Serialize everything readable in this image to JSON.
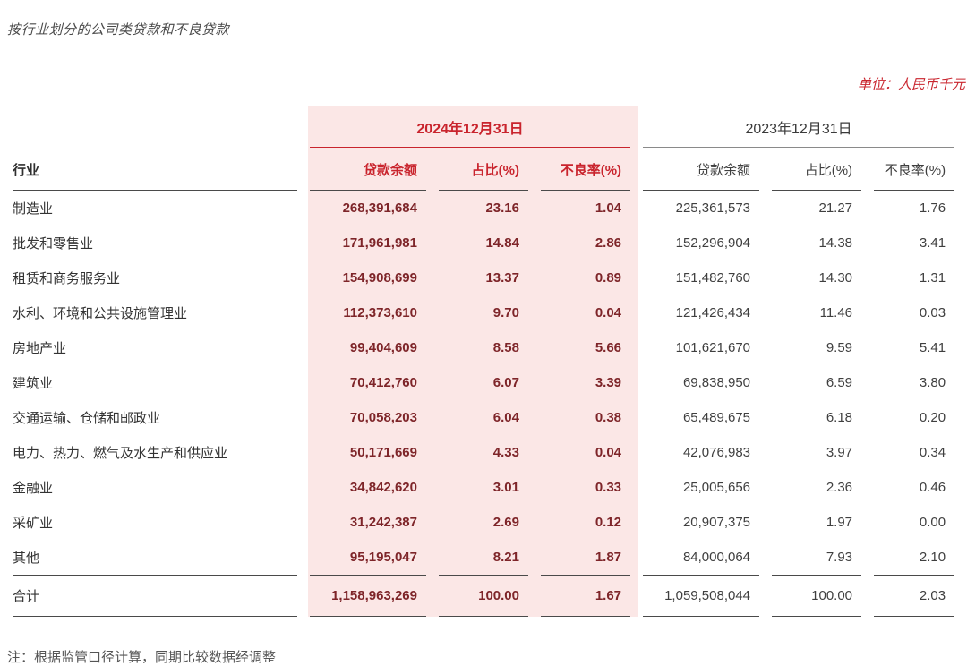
{
  "page": {
    "title": "按行业划分的公司类贷款和不良贷款",
    "unit_note": "单位：人民币千元",
    "footnote": "注：根据监管口径计算，同期比较数据经调整"
  },
  "colors": {
    "accent_red": "#c9242d",
    "highlight_background": "#fbe7e6",
    "value_2024_text": "#7e2529"
  },
  "table": {
    "group_headers": {
      "col_2024": "2024年12月31日",
      "col_2023": "2023年12月31日"
    },
    "row_header": "行业",
    "columns": [
      "贷款余额",
      "占比(%)",
      "不良率(%)",
      "贷款余额",
      "占比(%)",
      "不良率(%)"
    ],
    "rows": [
      {
        "label": "制造业",
        "values_2024": [
          "268,391,684",
          "23.16",
          "1.04"
        ],
        "values_2023": [
          "225,361,573",
          "21.27",
          "1.76"
        ]
      },
      {
        "label": "批发和零售业",
        "values_2024": [
          "171,961,981",
          "14.84",
          "2.86"
        ],
        "values_2023": [
          "152,296,904",
          "14.38",
          "3.41"
        ]
      },
      {
        "label": "租赁和商务服务业",
        "values_2024": [
          "154,908,699",
          "13.37",
          "0.89"
        ],
        "values_2023": [
          "151,482,760",
          "14.30",
          "1.31"
        ]
      },
      {
        "label": "水利、环境和公共设施管理业",
        "values_2024": [
          "112,373,610",
          "9.70",
          "0.04"
        ],
        "values_2023": [
          "121,426,434",
          "11.46",
          "0.03"
        ]
      },
      {
        "label": "房地产业",
        "values_2024": [
          "99,404,609",
          "8.58",
          "5.66"
        ],
        "values_2023": [
          "101,621,670",
          "9.59",
          "5.41"
        ]
      },
      {
        "label": "建筑业",
        "values_2024": [
          "70,412,760",
          "6.07",
          "3.39"
        ],
        "values_2023": [
          "69,838,950",
          "6.59",
          "3.80"
        ]
      },
      {
        "label": "交通运输、仓储和邮政业",
        "values_2024": [
          "70,058,203",
          "6.04",
          "0.38"
        ],
        "values_2023": [
          "65,489,675",
          "6.18",
          "0.20"
        ]
      },
      {
        "label": "电力、热力、燃气及水生产和供应业",
        "values_2024": [
          "50,171,669",
          "4.33",
          "0.04"
        ],
        "values_2023": [
          "42,076,983",
          "3.97",
          "0.34"
        ]
      },
      {
        "label": "金融业",
        "values_2024": [
          "34,842,620",
          "3.01",
          "0.33"
        ],
        "values_2023": [
          "25,005,656",
          "2.36",
          "0.46"
        ]
      },
      {
        "label": "采矿业",
        "values_2024": [
          "31,242,387",
          "2.69",
          "0.12"
        ],
        "values_2023": [
          "20,907,375",
          "1.97",
          "0.00"
        ]
      },
      {
        "label": "其他",
        "values_2024": [
          "95,195,047",
          "8.21",
          "1.87"
        ],
        "values_2023": [
          "84,000,064",
          "7.93",
          "2.10"
        ]
      }
    ],
    "total": {
      "label": "合计",
      "values_2024": [
        "1,158,963,269",
        "100.00",
        "1.67"
      ],
      "values_2023": [
        "1,059,508,044",
        "100.00",
        "2.03"
      ]
    }
  }
}
